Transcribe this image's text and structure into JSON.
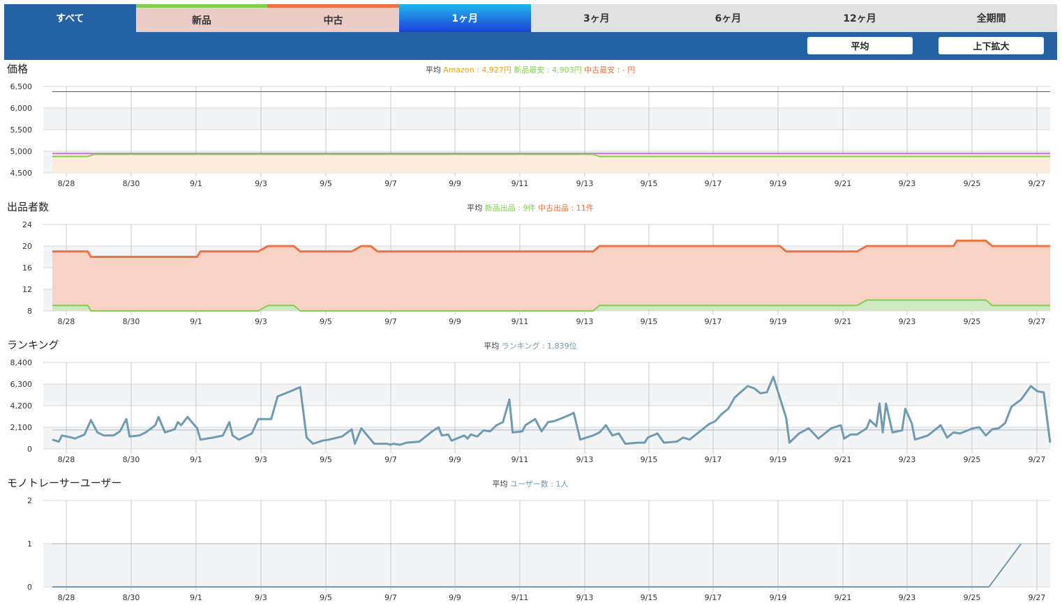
{
  "tabs": [
    {
      "label": "すべて",
      "style": "active-blue"
    },
    {
      "label": "新品",
      "style": "pink green-top"
    },
    {
      "label": "中古",
      "style": "pink orange-top"
    },
    {
      "label": "1ヶ月",
      "style": "active-grad"
    },
    {
      "label": "3ヶ月",
      "style": ""
    },
    {
      "label": "6ヶ月",
      "style": ""
    },
    {
      "label": "12ヶ月",
      "style": ""
    },
    {
      "label": "全期間",
      "style": ""
    }
  ],
  "buttons": {
    "average": "平均",
    "zoom": "上下拡大"
  },
  "colors": {
    "amazon": "#f0a000",
    "new": "#7ed04e",
    "used": "#ef7043",
    "rank": "#6f9aaf",
    "user": "#6f9aaf",
    "grid": "#c8c8c8",
    "maroon": "#a0402a",
    "magenta": "#d870d8"
  },
  "chart_data": [
    {
      "type": "line",
      "title": "価格",
      "avg_prefix": "平均",
      "legend": [
        {
          "text": "Amazon : 4,927円",
          "color": "#f0a000"
        },
        {
          "text": "新品最安 : 4,903円",
          "color": "#7ed04e"
        },
        {
          "text": "中古最安 : - 円",
          "color": "#ef7043"
        }
      ],
      "yticks": [
        "6,500",
        "6,000",
        "5,500",
        "5,000",
        "4,500"
      ],
      "ylim": [
        4500,
        6500
      ],
      "xticks": [
        "8/28",
        "8/30",
        "9/1",
        "9/3",
        "9/5",
        "9/7",
        "9/9",
        "9/11",
        "9/13",
        "9/15",
        "9/17",
        "9/19",
        "9/21",
        "9/23",
        "9/25",
        "9/27"
      ],
      "series": [
        {
          "values": [
            [
              0,
              6380
            ],
            [
              31,
              6380
            ]
          ],
          "color": "#a0402a",
          "width": 1
        },
        {
          "values": [
            [
              0,
              4950
            ],
            [
              31,
              4950
            ]
          ],
          "color": "#d870d8",
          "width": 2,
          "fill": "#fdebdb"
        },
        {
          "values": [
            [
              0,
              4880
            ],
            [
              1.1,
              4880
            ],
            [
              1.3,
              4930
            ],
            [
              16.8,
              4930
            ],
            [
              17.0,
              4880
            ],
            [
              31,
              4880
            ]
          ],
          "color": "#7ed04e",
          "width": 2
        }
      ]
    },
    {
      "type": "area",
      "title": "出品者数",
      "avg_prefix": "平均",
      "legend": [
        {
          "text": "新品出品 : 9件",
          "color": "#7ed04e"
        },
        {
          "text": "中古出品 : 11件",
          "color": "#ef7043"
        }
      ],
      "yticks": [
        "24",
        "20",
        "16",
        "12",
        "8"
      ],
      "ylim": [
        8,
        24
      ],
      "xticks": [
        "8/28",
        "8/30",
        "9/1",
        "9/3",
        "9/5",
        "9/7",
        "9/9",
        "9/11",
        "9/13",
        "9/15",
        "9/17",
        "9/19",
        "9/21",
        "9/23",
        "9/25",
        "9/27"
      ],
      "series": [
        {
          "values": [
            [
              0,
              19
            ],
            [
              1.1,
              19
            ],
            [
              1.2,
              18
            ],
            [
              4.5,
              18
            ],
            [
              4.6,
              19
            ],
            [
              6.4,
              19
            ],
            [
              6.7,
              20
            ],
            [
              7.5,
              20
            ],
            [
              7.7,
              19
            ],
            [
              9.3,
              19
            ],
            [
              9.6,
              20
            ],
            [
              9.9,
              20
            ],
            [
              10.1,
              19
            ],
            [
              16.8,
              19
            ],
            [
              17.0,
              20
            ],
            [
              22.6,
              20
            ],
            [
              22.8,
              19
            ],
            [
              25.0,
              19
            ],
            [
              25.3,
              20
            ],
            [
              28.0,
              20
            ],
            [
              28.1,
              21
            ],
            [
              29.0,
              21
            ],
            [
              29.2,
              20
            ],
            [
              31,
              20
            ]
          ],
          "color": "#ef7043",
          "width": 3,
          "fill": "#f9d2c6"
        },
        {
          "values": [
            [
              0,
              9
            ],
            [
              1.1,
              9
            ],
            [
              1.2,
              8
            ],
            [
              6.4,
              8
            ],
            [
              6.7,
              9
            ],
            [
              7.5,
              9
            ],
            [
              7.7,
              8
            ],
            [
              16.8,
              8
            ],
            [
              17.0,
              9
            ],
            [
              25.0,
              9
            ],
            [
              25.3,
              10
            ],
            [
              29.0,
              10
            ],
            [
              29.2,
              9
            ],
            [
              31,
              9
            ]
          ],
          "color": "#7ed04e",
          "width": 2,
          "fill": "#cfe8c2"
        }
      ]
    },
    {
      "type": "line",
      "title": "ランキング",
      "avg_prefix": "平均",
      "legend": [
        {
          "text": "ランキング : 1,839位",
          "color": "#6f9aaf"
        }
      ],
      "yticks": [
        "8,400",
        "6,300",
        "4,200",
        "2,100",
        "0"
      ],
      "ylim": [
        0,
        8400
      ],
      "xticks": [
        "8/28",
        "8/30",
        "9/1",
        "9/3",
        "9/5",
        "9/7",
        "9/9",
        "9/11",
        "9/13",
        "9/15",
        "9/17",
        "9/19",
        "9/21",
        "9/23",
        "9/25",
        "9/27"
      ],
      "avg_line": 1839,
      "series": [
        {
          "values": [
            [
              0,
              900
            ],
            [
              0.2,
              700
            ],
            [
              0.3,
              1300
            ],
            [
              0.6,
              1100
            ],
            [
              0.7,
              1000
            ],
            [
              1.0,
              1400
            ],
            [
              1.2,
              2800
            ],
            [
              1.4,
              1600
            ],
            [
              1.6,
              1300
            ],
            [
              1.9,
              1300
            ],
            [
              2.1,
              1700
            ],
            [
              2.3,
              2900
            ],
            [
              2.4,
              1200
            ],
            [
              2.7,
              1300
            ],
            [
              2.9,
              1600
            ],
            [
              3.2,
              2300
            ],
            [
              3.3,
              3100
            ],
            [
              3.5,
              1600
            ],
            [
              3.8,
              1900
            ],
            [
              3.9,
              2600
            ],
            [
              4.0,
              2300
            ],
            [
              4.2,
              3100
            ],
            [
              4.5,
              2000
            ],
            [
              4.6,
              900
            ],
            [
              5.0,
              1100
            ],
            [
              5.3,
              1300
            ],
            [
              5.5,
              2600
            ],
            [
              5.6,
              1300
            ],
            [
              5.8,
              900
            ],
            [
              6.2,
              1500
            ],
            [
              6.4,
              2900
            ],
            [
              6.8,
              2900
            ],
            [
              7.0,
              5100
            ],
            [
              7.4,
              5600
            ],
            [
              7.7,
              6000
            ],
            [
              7.9,
              1100
            ],
            [
              8.1,
              500
            ],
            [
              8.4,
              800
            ],
            [
              8.6,
              900
            ],
            [
              9.0,
              1200
            ],
            [
              9.3,
              1900
            ],
            [
              9.4,
              500
            ],
            [
              9.6,
              2000
            ],
            [
              10.0,
              500
            ],
            [
              10.4,
              500
            ],
            [
              10.5,
              400
            ],
            [
              10.6,
              500
            ],
            [
              10.8,
              400
            ],
            [
              11.0,
              600
            ],
            [
              11.4,
              700
            ],
            [
              11.8,
              1700
            ],
            [
              12.0,
              2100
            ],
            [
              12.1,
              1300
            ],
            [
              12.3,
              1400
            ],
            [
              12.4,
              800
            ],
            [
              12.8,
              1300
            ],
            [
              12.9,
              1000
            ],
            [
              13.0,
              1400
            ],
            [
              13.2,
              1200
            ],
            [
              13.4,
              1800
            ],
            [
              13.6,
              1700
            ],
            [
              13.8,
              2300
            ],
            [
              14.0,
              2600
            ],
            [
              14.2,
              4800
            ],
            [
              14.3,
              1600
            ],
            [
              14.6,
              1700
            ],
            [
              14.7,
              2300
            ],
            [
              15.0,
              2900
            ],
            [
              15.2,
              1700
            ],
            [
              15.4,
              2600
            ],
            [
              15.6,
              2700
            ],
            [
              16.0,
              3200
            ],
            [
              16.2,
              3500
            ],
            [
              16.4,
              900
            ],
            [
              16.8,
              1300
            ],
            [
              17.0,
              1600
            ],
            [
              17.2,
              2300
            ],
            [
              17.4,
              1300
            ],
            [
              17.6,
              1500
            ],
            [
              17.8,
              500
            ],
            [
              18.2,
              600
            ],
            [
              18.4,
              600
            ],
            [
              18.5,
              1100
            ],
            [
              18.8,
              1500
            ],
            [
              19.0,
              600
            ],
            [
              19.4,
              700
            ],
            [
              19.6,
              1100
            ],
            [
              19.8,
              900
            ],
            [
              20.2,
              1900
            ],
            [
              20.4,
              2400
            ],
            [
              20.6,
              2700
            ],
            [
              20.8,
              3400
            ],
            [
              21.0,
              3900
            ],
            [
              21.2,
              5000
            ],
            [
              21.6,
              6100
            ],
            [
              21.8,
              5900
            ],
            [
              22.0,
              5400
            ],
            [
              22.2,
              5500
            ],
            [
              22.4,
              7000
            ],
            [
              22.8,
              3000
            ],
            [
              22.9,
              600
            ],
            [
              23.2,
              1500
            ],
            [
              23.5,
              2000
            ],
            [
              23.8,
              1000
            ],
            [
              24.2,
              2000
            ],
            [
              24.5,
              2300
            ],
            [
              24.6,
              1000
            ],
            [
              24.8,
              1400
            ],
            [
              25.0,
              1400
            ],
            [
              25.3,
              2000
            ],
            [
              25.4,
              2800
            ],
            [
              25.6,
              2200
            ],
            [
              25.7,
              4400
            ],
            [
              25.8,
              1600
            ],
            [
              25.9,
              4400
            ],
            [
              26.1,
              1600
            ],
            [
              26.4,
              1800
            ],
            [
              26.5,
              3900
            ],
            [
              26.7,
              2500
            ],
            [
              26.8,
              900
            ],
            [
              27.0,
              1100
            ],
            [
              27.2,
              1300
            ],
            [
              27.6,
              2300
            ],
            [
              27.8,
              1100
            ],
            [
              28.0,
              1600
            ],
            [
              28.2,
              1500
            ],
            [
              28.6,
              2000
            ],
            [
              28.8,
              2100
            ],
            [
              29.0,
              1300
            ],
            [
              29.2,
              1900
            ],
            [
              29.4,
              2000
            ],
            [
              29.6,
              2500
            ],
            [
              29.8,
              4100
            ],
            [
              30.1,
              4800
            ],
            [
              30.4,
              6100
            ],
            [
              30.6,
              5600
            ],
            [
              30.8,
              5500
            ],
            [
              31,
              600
            ]
          ],
          "color": "#6f9aaf",
          "width": 3
        }
      ]
    },
    {
      "type": "line",
      "title": "モノトレーサーユーザー",
      "avg_prefix": "平均",
      "legend": [
        {
          "text": "ユーザー数 : 1人",
          "color": "#6f9aaf"
        }
      ],
      "yticks": [
        "2",
        "1",
        "0"
      ],
      "ylim": [
        0,
        2
      ],
      "xticks": [
        "8/28",
        "8/30",
        "9/1",
        "9/3",
        "9/5",
        "9/7",
        "9/9",
        "9/11",
        "9/13",
        "9/15",
        "9/17",
        "9/19",
        "9/21",
        "9/23",
        "9/25",
        "9/27"
      ],
      "series": [
        {
          "values": [
            [
              0,
              0
            ],
            [
              29.1,
              0
            ],
            [
              30.1,
              1
            ]
          ],
          "color": "#6f9aaf",
          "width": 2
        },
        {
          "values": [
            [
              0,
              1
            ],
            [
              31,
              1
            ]
          ],
          "color": "#a8b8c0",
          "width": 1
        }
      ]
    }
  ]
}
